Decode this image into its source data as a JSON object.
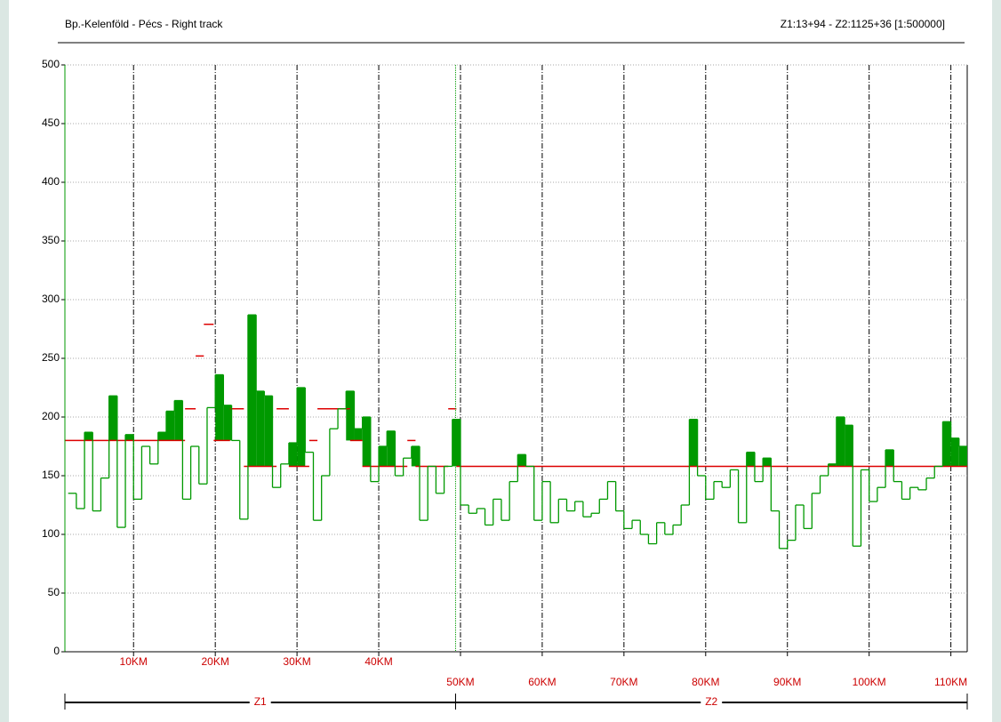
{
  "chart_data": {
    "type": "step",
    "title": "Bp.-Kelenföld - Pécs - Right track",
    "subtitle": "Z1:13+94 - Z2:1125+36 [1:500000]",
    "xlim": [
      1.6,
      112
    ],
    "ylim": [
      0,
      500
    ],
    "yticks": [
      0,
      50,
      100,
      150,
      200,
      250,
      300,
      350,
      400,
      450,
      500
    ],
    "xticks": [
      {
        "value": 10,
        "label": "10KM"
      },
      {
        "value": 20,
        "label": "20KM"
      },
      {
        "value": 30,
        "label": "30KM"
      },
      {
        "value": 40,
        "label": "40KM"
      },
      {
        "value": 50,
        "label": "50KM"
      },
      {
        "value": 60,
        "label": "60KM"
      },
      {
        "value": 70,
        "label": "70KM"
      },
      {
        "value": 80,
        "label": "80KM"
      },
      {
        "value": 90,
        "label": "90KM"
      },
      {
        "value": 100,
        "label": "100KM"
      },
      {
        "value": 110,
        "label": "110KM"
      }
    ],
    "grid": true,
    "series": [
      {
        "color": "#009900",
        "x": [
          2,
          3,
          4,
          5,
          6,
          7,
          8,
          9,
          10,
          11,
          12,
          13,
          14,
          15,
          16,
          17,
          18,
          19,
          20,
          21,
          22,
          23,
          24,
          25,
          26,
          27,
          28,
          29,
          30,
          31,
          32,
          33,
          34,
          35,
          36,
          37,
          38,
          39,
          40,
          41,
          42,
          43,
          44,
          45,
          46,
          47,
          48,
          49,
          50,
          51,
          52,
          53,
          54,
          55,
          56,
          57,
          58,
          59,
          60,
          61,
          62,
          63,
          64,
          65,
          66,
          67,
          68,
          69,
          70,
          71,
          72,
          73,
          74,
          75,
          76,
          77,
          78,
          79,
          80,
          81,
          82,
          83,
          84,
          85,
          86,
          87,
          88,
          89,
          90,
          91,
          92,
          93,
          94,
          95,
          96,
          97,
          98,
          99,
          100,
          101,
          102,
          103,
          104,
          105,
          106,
          107,
          108,
          109,
          110,
          111
        ],
        "values": [
          135,
          122,
          187,
          120,
          148,
          218,
          106,
          185,
          130,
          175,
          160,
          187,
          205,
          214,
          130,
          175,
          143,
          208,
          236,
          210,
          180,
          113,
          287,
          222,
          218,
          140,
          160,
          178,
          225,
          170,
          112,
          150,
          190,
          207,
          222,
          190,
          200,
          145,
          175,
          188,
          150,
          165,
          175,
          112,
          158,
          135,
          158,
          198,
          125,
          118,
          122,
          108,
          130,
          112,
          145,
          168,
          158,
          112,
          145,
          110,
          130,
          120,
          128,
          115,
          118,
          130,
          145,
          120,
          105,
          112,
          100,
          92,
          110,
          100,
          108,
          125,
          198,
          150,
          130,
          145,
          140,
          155,
          110,
          170,
          145,
          165,
          120,
          88,
          95,
          125,
          105,
          135,
          150,
          160,
          200,
          193,
          90,
          155,
          128,
          140,
          172,
          145,
          130,
          140,
          138,
          148,
          158,
          196,
          182,
          175
        ]
      },
      {
        "color": "#dd0000",
        "x": [
          1.6,
          16.3,
          17.6,
          18.6,
          19.8,
          21.8,
          23.5,
          27.5,
          29,
          31.5,
          32.5,
          36.5,
          38,
          43.5,
          44.5,
          48.5,
          49.5
        ],
        "values": [
          180,
          207,
          252,
          279,
          180,
          207,
          158,
          207,
          158,
          180,
          207,
          180,
          158,
          180,
          158,
          207,
          158
        ]
      }
    ],
    "zones": [
      {
        "name": "Z1",
        "start": 1.6,
        "end": 49.4
      },
      {
        "name": "Z2",
        "start": 49.4,
        "end": 112
      }
    ]
  }
}
